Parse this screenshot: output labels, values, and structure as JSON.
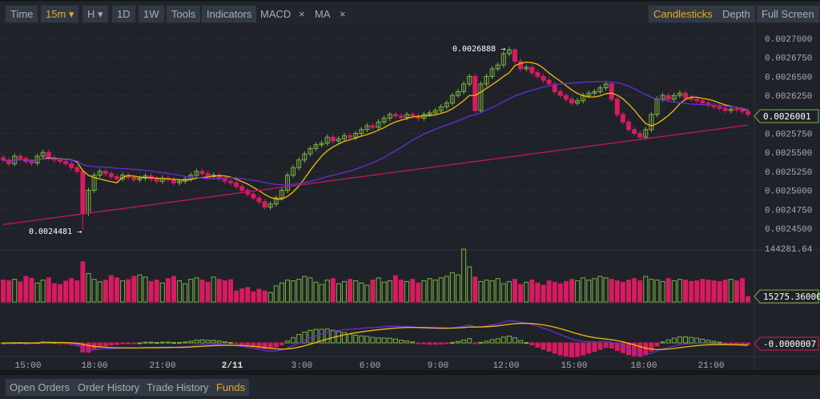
{
  "toolbar": {
    "time": "Time",
    "interval": "15m",
    "h": "H",
    "d1": "1D",
    "w1": "1W",
    "tools": "Tools",
    "indicators": "Indicators",
    "macd": "MACD",
    "ma": "MA",
    "close": "×",
    "candlesticks": "Candlesticks",
    "depth": "Depth",
    "fullscreen": "Full Screen"
  },
  "tabs": {
    "open_orders": "Open Orders",
    "order_history": "Order History",
    "trade_history": "Trade History",
    "funds": "Funds"
  },
  "colors": {
    "up": "#7cb342",
    "down": "#d81b60",
    "ma_fast": "#f0b90b",
    "ma_mid": "#6a2bd8",
    "ma_slow": "#c2185b",
    "bg": "#1f2329",
    "active": "#e5a82a"
  },
  "chart_data": {
    "type": "candlestick",
    "price_ticks": [
      "0.0027000",
      "0.0026750",
      "0.0026500",
      "0.0026250",
      "0.0025750",
      "0.0025500",
      "0.0025250",
      "0.0025000",
      "0.0024750",
      "0.0024500"
    ],
    "price_range": [
      0.002445,
      0.002718
    ],
    "time_ticks": [
      "15:00",
      "18:00",
      "21:00",
      "2/11",
      "3:00",
      "6:00",
      "9:00",
      "12:00",
      "15:00",
      "18:00",
      "21:00"
    ],
    "last_price": "0.0026001",
    "high_annotation": "0.0026888",
    "low_annotation": "0.0024481",
    "volume_max_label": "144281.64",
    "volume_max": 144281.64,
    "last_volume": "15275.36000",
    "macd_value": "-0.0000007",
    "closes": [
      0.00254,
      0.002535,
      0.002545,
      0.002542,
      0.002538,
      0.002536,
      0.002545,
      0.00255,
      0.002543,
      0.00254,
      0.002538,
      0.002535,
      0.00253,
      0.002525,
      0.00247,
      0.0025,
      0.00252,
      0.002525,
      0.002522,
      0.002518,
      0.002515,
      0.00252,
      0.002517,
      0.002514,
      0.002516,
      0.002519,
      0.002515,
      0.002512,
      0.002516,
      0.002514,
      0.00251,
      0.002512,
      0.002515,
      0.00252,
      0.002525,
      0.002522,
      0.002518,
      0.00252,
      0.002516,
      0.002512,
      0.00251,
      0.002505,
      0.0025,
      0.002495,
      0.00249,
      0.002485,
      0.002478,
      0.002482,
      0.00249,
      0.0025,
      0.00252,
      0.00253,
      0.00254,
      0.002548,
      0.002555,
      0.00256,
      0.002562,
      0.00257,
      0.002565,
      0.002568,
      0.002572,
      0.00257,
      0.002575,
      0.00258,
      0.002585,
      0.002583,
      0.00259,
      0.002595,
      0.0026,
      0.002598,
      0.002596,
      0.0026,
      0.002598,
      0.002595,
      0.0026,
      0.002602,
      0.002605,
      0.00261,
      0.002615,
      0.002625,
      0.00263,
      0.00264,
      0.00265,
      0.002605,
      0.00264,
      0.00265,
      0.00266,
      0.002665,
      0.00268,
      0.002685,
      0.00267,
      0.00266,
      0.002662,
      0.002655,
      0.00265,
      0.002645,
      0.00264,
      0.00263,
      0.002625,
      0.00262,
      0.002615,
      0.002618,
      0.002625,
      0.002628,
      0.00263,
      0.002635,
      0.00264,
      0.00262,
      0.0026,
      0.00259,
      0.00258,
      0.002575,
      0.00257,
      0.00258,
      0.0026,
      0.00262,
      0.002625,
      0.00262,
      0.002625,
      0.002628,
      0.002622,
      0.00262,
      0.002618,
      0.002615,
      0.002612,
      0.00261,
      0.002608,
      0.002605,
      0.002607,
      0.002606,
      0.002604,
      0.0026
    ],
    "volumes": [
      60000,
      58000,
      62000,
      55000,
      70000,
      65000,
      52000,
      60000,
      66000,
      50000,
      48000,
      57000,
      64000,
      58000,
      110000,
      78000,
      62000,
      55000,
      60000,
      72000,
      66000,
      58000,
      61000,
      70000,
      74000,
      68000,
      56000,
      60000,
      52000,
      64000,
      70000,
      58000,
      50000,
      62000,
      66000,
      60000,
      54000,
      68000,
      62000,
      58000,
      61000,
      30000,
      36000,
      40000,
      28000,
      35000,
      30000,
      26000,
      44000,
      52000,
      60000,
      58000,
      62000,
      70000,
      66000,
      54000,
      48000,
      60000,
      64000,
      50000,
      56000,
      62000,
      58000,
      52000,
      46000,
      60000,
      66000,
      54000,
      58000,
      72000,
      60000,
      56000,
      62000,
      52000,
      58000,
      64000,
      60000,
      66000,
      70000,
      80000,
      74000,
      144281,
      96000,
      68000,
      56000,
      60000,
      58000,
      64000,
      50000,
      56000,
      62000,
      48000,
      54000,
      60000,
      52000,
      46000,
      58000,
      54000,
      50000,
      56000,
      62000,
      58000,
      66000,
      60000,
      64000,
      70000,
      66000,
      62000,
      58000,
      54000,
      60000,
      64000,
      58000,
      70000,
      62000,
      60000,
      56000,
      64000,
      58000,
      62000,
      60000,
      56000,
      58000,
      62000,
      60000,
      58000,
      56000,
      60000,
      62000,
      58000,
      64000,
      15275
    ]
  }
}
